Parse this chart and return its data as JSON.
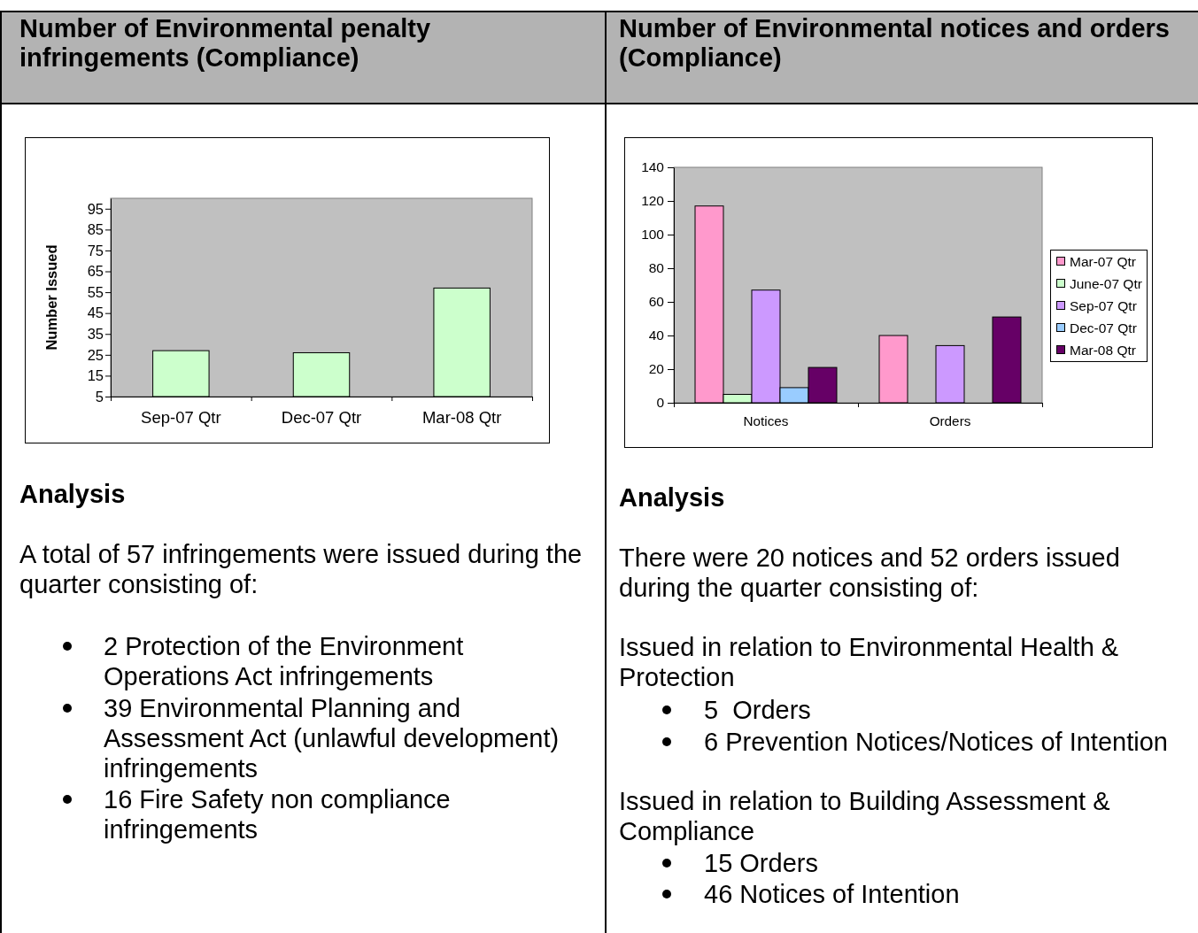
{
  "chart_data": [
    {
      "type": "bar",
      "title": "Number of Environmental penalty infringements (Compliance)",
      "ylabel": "Number Issued",
      "categories": [
        "Sep-07 Qtr",
        "Dec-07 Qtr",
        "Mar-08 Qtr"
      ],
      "values": [
        27,
        26,
        57
      ],
      "color": "#ccffcc",
      "ylim": [
        5,
        100
      ],
      "yticks": [
        5,
        15,
        25,
        35,
        45,
        55,
        65,
        75,
        85,
        95
      ],
      "annotations": [
        "Analysis",
        "A total of 57 infringements were issued during the quarter consisting of:",
        "2 Protection of the Environment Operations Act infringements",
        "39 Environmental Planning and Assessment Act (unlawful development) infringements",
        "16 Fire Safety non compliance infringements"
      ]
    },
    {
      "type": "bar",
      "title": "Number of Environmental notices and orders (Compliance)",
      "categories": [
        "Notices",
        "Orders"
      ],
      "series": [
        {
          "name": "Mar-07 Qtr",
          "color": "#ff99cc",
          "values": [
            117,
            40
          ]
        },
        {
          "name": "June-07 Qtr",
          "color": "#ccffcc",
          "values": [
            5,
            null
          ]
        },
        {
          "name": "Sep-07 Qtr",
          "color": "#cc99ff",
          "values": [
            67,
            34
          ]
        },
        {
          "name": "Dec-07 Qtr",
          "color": "#99ccff",
          "values": [
            9,
            null
          ]
        },
        {
          "name": "Mar-08 Qtr",
          "color": "#660066",
          "values": [
            21,
            51
          ]
        }
      ],
      "ylim": [
        0,
        140
      ],
      "yticks": [
        0,
        20,
        40,
        60,
        80,
        100,
        120,
        140
      ],
      "legend": "right",
      "annotations": [
        "Analysis",
        "There were 20 notices and 52 orders issued during the quarter consisting of:",
        "Issued in relation to Environmental Health & Protection",
        "5  Orders",
        "6 Prevention Notices/Notices of Intention",
        "Issued in relation to Building Assessment & Compliance",
        "15 Orders",
        "46 Notices of Intention"
      ]
    }
  ]
}
